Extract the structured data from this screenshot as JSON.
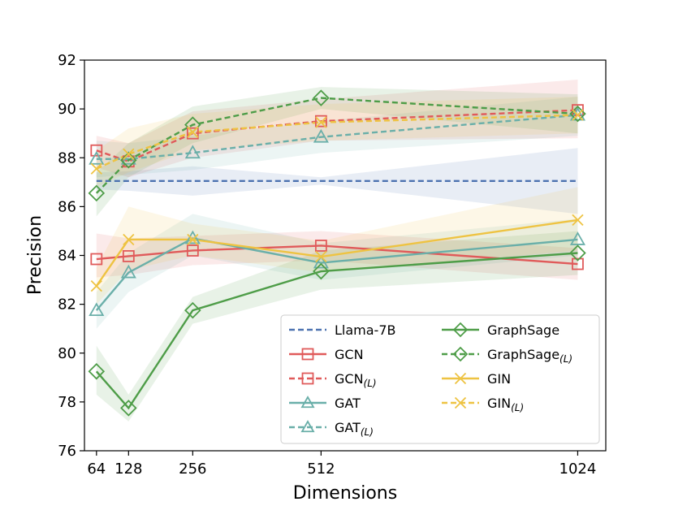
{
  "chart_data": {
    "type": "line",
    "xlabel": "Dimensions",
    "ylabel": "Precision",
    "x": [
      64,
      128,
      256,
      512,
      1024
    ],
    "x_tick_labels": [
      "64",
      "128",
      "256",
      "512",
      "1024"
    ],
    "xlim": [
      40,
      1080
    ],
    "ylim": [
      76,
      92
    ],
    "y_ticks": [
      76,
      78,
      80,
      82,
      84,
      86,
      88,
      90,
      92
    ],
    "legend_location": "lower-right",
    "series": [
      {
        "name": "Llama-7B",
        "sub": "",
        "color": "#4c72b0",
        "dash": true,
        "marker": "none",
        "values": [
          87.05,
          87.05,
          87.05,
          87.05,
          87.05
        ],
        "band_low": [
          86.7,
          86.65,
          86.45,
          86.9,
          85.7
        ],
        "band_high": [
          87.4,
          87.45,
          87.65,
          87.2,
          88.4
        ]
      },
      {
        "name": "GCN",
        "sub": "",
        "color": "#e05a5a",
        "dash": false,
        "marker": "square",
        "values": [
          83.85,
          83.97,
          84.2,
          84.4,
          83.65
        ],
        "band_low": [
          83.1,
          83.2,
          83.6,
          83.8,
          83.0
        ],
        "band_high": [
          84.9,
          84.7,
          84.8,
          85.0,
          84.3
        ]
      },
      {
        "name": "GCN",
        "sub": "(L)",
        "color": "#e05a5a",
        "dash": true,
        "marker": "square",
        "values": [
          88.3,
          87.85,
          89.0,
          89.5,
          89.95
        ],
        "band_low": [
          87.6,
          87.2,
          88.0,
          88.7,
          88.8
        ],
        "band_high": [
          88.9,
          88.6,
          89.9,
          90.4,
          91.2
        ]
      },
      {
        "name": "GAT",
        "sub": "",
        "color": "#6aafa9",
        "dash": false,
        "marker": "triangle",
        "values": [
          81.75,
          83.3,
          84.7,
          83.7,
          84.65
        ],
        "band_low": [
          81.0,
          82.5,
          84.0,
          83.0,
          84.0
        ],
        "band_high": [
          82.5,
          84.1,
          85.7,
          84.5,
          85.5
        ]
      },
      {
        "name": "GAT",
        "sub": "(L)",
        "color": "#6aafa9",
        "dash": true,
        "marker": "triangle",
        "values": [
          87.95,
          87.95,
          88.2,
          88.85,
          89.75
        ],
        "band_low": [
          87.2,
          87.3,
          87.5,
          88.2,
          88.9
        ],
        "band_high": [
          88.7,
          88.6,
          88.9,
          89.5,
          90.5
        ]
      },
      {
        "name": "GraphSage",
        "sub": "",
        "color": "#4e9d48",
        "dash": false,
        "marker": "diamond",
        "values": [
          79.25,
          77.75,
          81.75,
          83.35,
          84.1
        ],
        "band_low": [
          78.3,
          77.2,
          81.2,
          82.6,
          83.2
        ],
        "band_high": [
          80.3,
          78.3,
          82.3,
          84.2,
          85.0
        ]
      },
      {
        "name": "GraphSage",
        "sub": "(L)",
        "color": "#4e9d48",
        "dash": true,
        "marker": "diamond",
        "values": [
          86.55,
          87.9,
          89.35,
          90.45,
          89.8
        ],
        "band_low": [
          85.6,
          87.2,
          88.6,
          90.0,
          89.0
        ],
        "band_high": [
          87.4,
          88.6,
          90.1,
          90.9,
          90.6
        ]
      },
      {
        "name": "GIN",
        "sub": "",
        "color": "#eec342",
        "dash": false,
        "marker": "x",
        "values": [
          82.75,
          84.65,
          84.65,
          83.95,
          85.45
        ],
        "band_low": [
          82.0,
          83.4,
          84.0,
          83.3,
          84.2
        ],
        "band_high": [
          83.5,
          86.0,
          85.3,
          84.6,
          86.8
        ]
      },
      {
        "name": "GIN",
        "sub": "(L)",
        "color": "#eec342",
        "dash": true,
        "marker": "x",
        "values": [
          87.55,
          88.15,
          89.05,
          89.45,
          89.75
        ],
        "band_low": [
          86.8,
          87.4,
          88.3,
          88.7,
          89.0
        ],
        "band_high": [
          88.3,
          89.2,
          89.8,
          90.2,
          90.5
        ]
      }
    ]
  }
}
